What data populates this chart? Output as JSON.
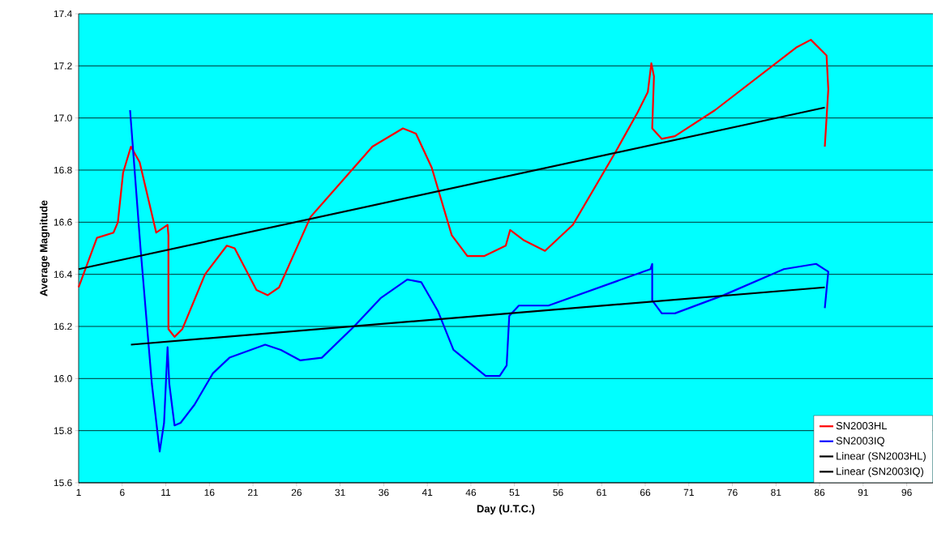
{
  "chart_data": {
    "type": "line",
    "xlabel": "Day (U.T.C.)",
    "ylabel": "Average Magnitude",
    "xlim": [
      1,
      99
    ],
    "ylim": [
      15.6,
      17.4
    ],
    "xticks": [
      1,
      6,
      11,
      16,
      21,
      26,
      31,
      36,
      41,
      46,
      51,
      56,
      61,
      66,
      71,
      76,
      81,
      86,
      91,
      96
    ],
    "yticks": [
      15.6,
      15.8,
      {
        "value": 16,
        "label": "16.0"
      },
      16.2,
      16.4,
      16.6,
      16.8,
      {
        "value": 17,
        "label": "17.0"
      },
      17.2,
      17.4
    ],
    "grid": "y",
    "legend": "bottom right",
    "series": [
      {
        "name": "SN2003HL",
        "color": "#ff0000",
        "x": [
          1,
          3.1,
          5,
          5.5,
          6.1,
          7.0,
          8.0,
          9.9,
          11.2,
          11.3,
          11.3,
          12,
          12.9,
          15.5,
          18,
          18.9,
          21.4,
          22.7,
          24,
          27.6,
          34.7,
          38.2,
          39.7,
          41.5,
          43.8,
          45.6,
          47.5,
          50,
          50.5,
          52.1,
          54.5,
          57.7,
          62.6,
          65.1,
          66.3,
          66.7,
          67.0,
          66.8,
          67.9,
          69.4,
          74,
          83.3,
          85,
          86.8,
          87.0,
          86.6
        ],
        "values": [
          16.35,
          16.54,
          16.56,
          16.6,
          16.79,
          16.89,
          16.83,
          16.56,
          16.59,
          16.55,
          16.19,
          16.16,
          16.19,
          16.4,
          16.51,
          16.5,
          16.34,
          16.32,
          16.35,
          16.62,
          16.89,
          16.96,
          16.94,
          16.81,
          16.55,
          16.47,
          16.47,
          16.51,
          16.57,
          16.53,
          16.49,
          16.59,
          16.87,
          17.02,
          17.1,
          17.21,
          17.16,
          16.96,
          16.92,
          16.93,
          17.03,
          17.27,
          17.3,
          17.24,
          17.11,
          16.89
        ]
      },
      {
        "name": "SN2003IQ",
        "color": "#0000ff",
        "x": [
          6.9,
          8.1,
          9.4,
          10.3,
          10.8,
          11.2,
          11.4,
          12,
          12.7,
          14.3,
          16.4,
          18.3,
          22.4,
          24.2,
          26.4,
          28.9,
          32.6,
          35.7,
          38.7,
          40.3,
          42.2,
          44.0,
          47.7,
          49.3,
          50.1,
          50.4,
          51.5,
          54.9,
          66.6,
          66.8,
          66.8,
          67.9,
          69.4,
          75,
          81.9,
          85.6,
          87,
          86.6
        ],
        "values": [
          17.03,
          16.5,
          15.98,
          15.72,
          15.83,
          16.12,
          15.98,
          15.82,
          15.83,
          15.9,
          16.02,
          16.08,
          16.13,
          16.11,
          16.07,
          16.08,
          16.2,
          16.31,
          16.38,
          16.37,
          16.26,
          16.11,
          16.01,
          16.01,
          16.05,
          16.24,
          16.28,
          16.28,
          16.42,
          16.44,
          16.3,
          16.25,
          16.25,
          16.32,
          16.42,
          16.44,
          16.41,
          16.27
        ]
      },
      {
        "name": "Linear (SN2003HL)",
        "color": "#000000",
        "x": [
          1,
          86.6
        ],
        "values": [
          16.42,
          17.04
        ]
      },
      {
        "name": "Linear (SN2003IQ)",
        "color": "#000000",
        "x": [
          7.0,
          86.6
        ],
        "values": [
          16.13,
          16.35
        ]
      }
    ]
  }
}
